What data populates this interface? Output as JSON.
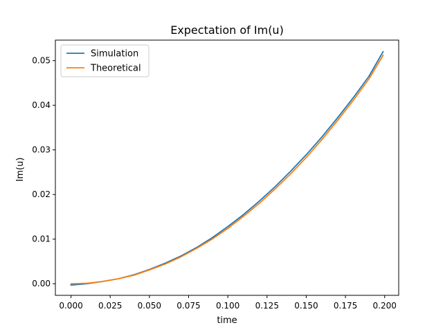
{
  "chart_data": {
    "type": "line",
    "title": "Expectation of Im(u)",
    "xlabel": "time",
    "ylabel": "Im(u)",
    "xlim": [
      -0.00995,
      0.20895
    ],
    "ylim": [
      -0.0026,
      0.0546
    ],
    "xticks": [
      0.0,
      0.025,
      0.05,
      0.075,
      0.1,
      0.125,
      0.15,
      0.175,
      0.2
    ],
    "xtick_labels": [
      "0.000",
      "0.025",
      "0.050",
      "0.075",
      "0.100",
      "0.125",
      "0.150",
      "0.175",
      "0.200"
    ],
    "yticks": [
      0.0,
      0.01,
      0.02,
      0.03,
      0.04,
      0.05
    ],
    "ytick_labels": [
      "0.00",
      "0.01",
      "0.02",
      "0.03",
      "0.04",
      "0.05"
    ],
    "grid": false,
    "legend_position": "top-left",
    "x": [
      0.0,
      0.01,
      0.02,
      0.03,
      0.04,
      0.05,
      0.06,
      0.07,
      0.08,
      0.09,
      0.1,
      0.11,
      0.12,
      0.13,
      0.14,
      0.15,
      0.16,
      0.17,
      0.18,
      0.19,
      0.199
    ],
    "series": [
      {
        "name": "Simulation",
        "color": "#1f77b4",
        "values": [
          -0.0003,
          0.0,
          0.0005,
          0.0011,
          0.002,
          0.0032,
          0.0046,
          0.0062,
          0.0081,
          0.0103,
          0.0128,
          0.0155,
          0.0185,
          0.0217,
          0.0252,
          0.0289,
          0.0329,
          0.0372,
          0.0417,
          0.0465,
          0.052
        ]
      },
      {
        "name": "Theoretical",
        "color": "#ff7f0e",
        "values": [
          0.0,
          0.0001,
          0.0005,
          0.0011,
          0.0019,
          0.0031,
          0.0044,
          0.006,
          0.0079,
          0.01,
          0.0124,
          0.0151,
          0.018,
          0.0212,
          0.0246,
          0.0283,
          0.0323,
          0.0366,
          0.0411,
          0.0459,
          0.0512
        ]
      }
    ]
  }
}
